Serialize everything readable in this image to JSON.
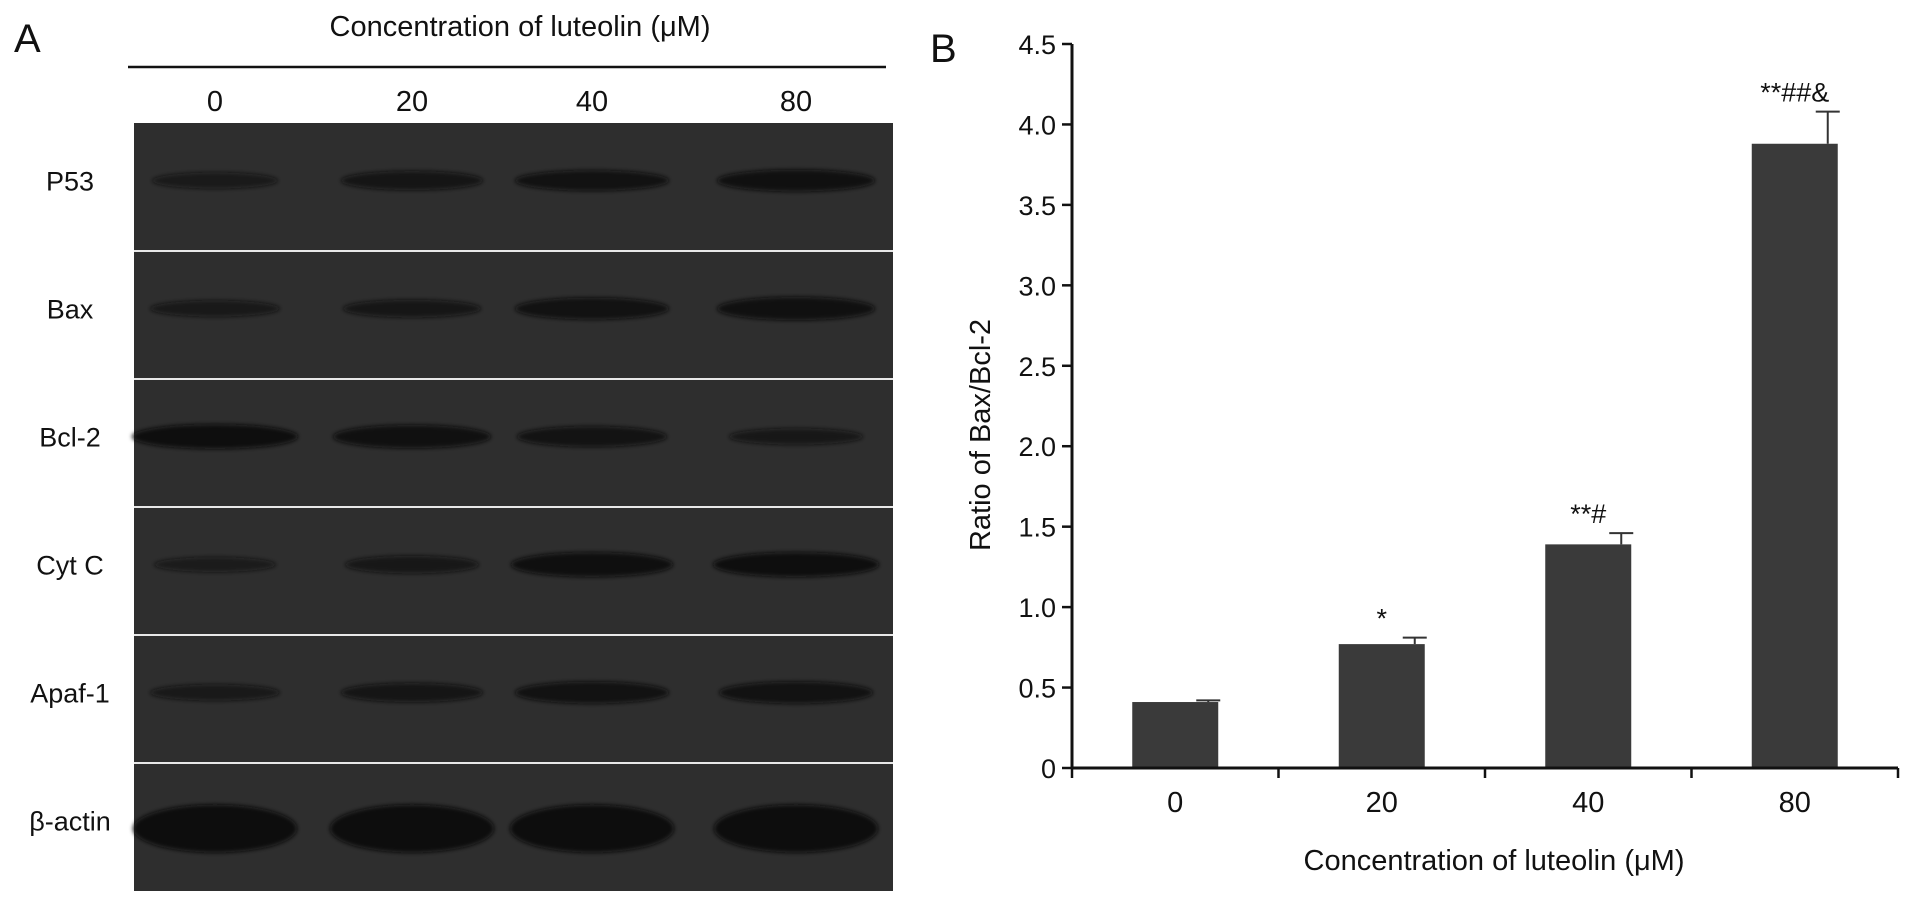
{
  "panel_a": {
    "panel_label": "A",
    "header": "Concentration of luteolin (μM)",
    "lanes": [
      "0",
      "20",
      "40",
      "80"
    ],
    "rows": [
      {
        "label": "P53",
        "band_intensity": [
          0.45,
          0.65,
          0.8,
          0.85
        ],
        "band_thickness": [
          0.3,
          0.4,
          0.45,
          0.5
        ]
      },
      {
        "label": "Bax",
        "band_intensity": [
          0.5,
          0.6,
          0.8,
          0.85
        ],
        "band_thickness": [
          0.3,
          0.35,
          0.5,
          0.55
        ]
      },
      {
        "label": "Bcl-2",
        "band_intensity": [
          0.95,
          0.85,
          0.75,
          0.55
        ],
        "band_thickness": [
          0.6,
          0.55,
          0.45,
          0.3
        ]
      },
      {
        "label": "Cyt C",
        "band_intensity": [
          0.4,
          0.55,
          0.9,
          0.95
        ],
        "band_thickness": [
          0.25,
          0.35,
          0.6,
          0.6
        ]
      },
      {
        "label": "Apaf-1",
        "band_intensity": [
          0.5,
          0.65,
          0.8,
          0.8
        ],
        "band_thickness": [
          0.3,
          0.4,
          0.5,
          0.5
        ]
      },
      {
        "label": "β-actin",
        "band_intensity": [
          1.0,
          1.0,
          1.0,
          1.0
        ],
        "band_thickness": [
          1.0,
          1.0,
          1.0,
          1.0
        ]
      }
    ],
    "colors": {
      "blot_background": "#2e2e2e",
      "band": "#0a0a0a",
      "divider": "#e8e8e8"
    }
  },
  "chart_data": {
    "type": "bar",
    "panel_label": "B",
    "categories": [
      "0",
      "20",
      "40",
      "80"
    ],
    "values": [
      0.41,
      0.77,
      1.39,
      3.88
    ],
    "errors": [
      0.01,
      0.04,
      0.07,
      0.2
    ],
    "annotations": [
      "",
      "*",
      "**#",
      "**##&"
    ],
    "xlabel": "Concentration of luteolin (μM)",
    "ylabel": "Ratio of Bax/Bcl-2",
    "ylim": [
      0,
      4.5
    ],
    "yticks": [
      0,
      0.5,
      1.0,
      1.5,
      2.0,
      2.5,
      3.0,
      3.5,
      4.0,
      4.5
    ],
    "ytick_labels": [
      "0",
      "0.5",
      "1.0",
      "1.5",
      "2.0",
      "2.5",
      "3.0",
      "3.5",
      "4.0",
      "4.5"
    ],
    "grid": false,
    "bar_color": "#3a3a3a"
  }
}
